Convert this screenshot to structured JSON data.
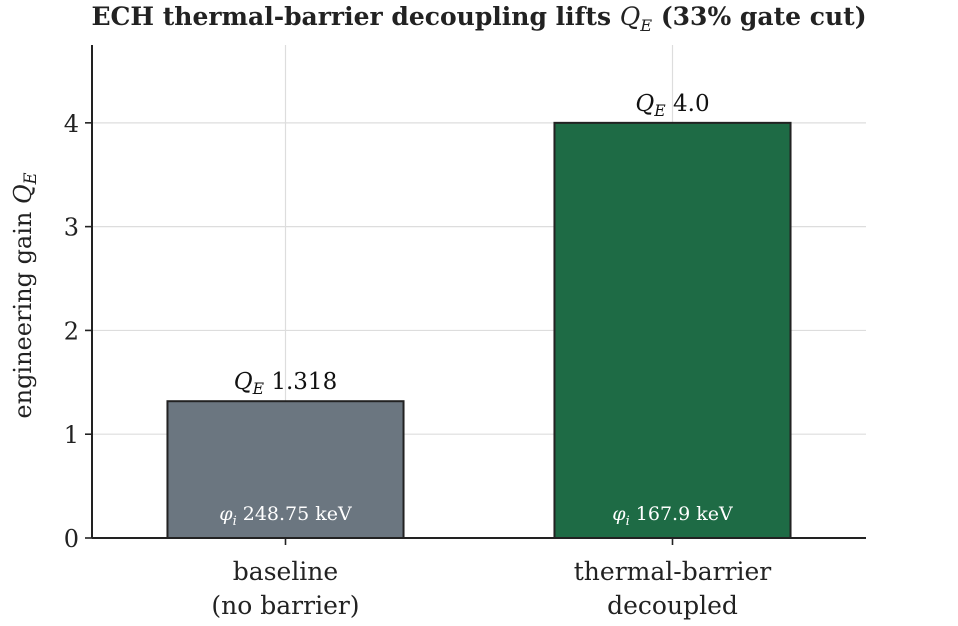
{
  "title": {
    "prefix": "ECH thermal-barrier decoupling lifts ",
    "math": "Q",
    "math_sub": "E",
    "suffix": " (33% gate cut)"
  },
  "chart_data": {
    "type": "bar",
    "categories": [
      [
        "baseline",
        "(no barrier)"
      ],
      [
        "thermal-barrier",
        "decoupled"
      ]
    ],
    "values": [
      1.318,
      4.0
    ],
    "value_labels": [
      "1.318",
      "4.0"
    ],
    "value_label_prefix": {
      "symbol": "Q",
      "sub": "E"
    },
    "inbar_labels": [
      "248.75 keV",
      "167.9 keV"
    ],
    "inbar_label_prefix": {
      "symbol": "φ",
      "sub": "i"
    },
    "bar_colors": [
      "#6b7680",
      "#1e6b45"
    ],
    "edge_color": "#222222",
    "ylabel": {
      "text": "engineering gain ",
      "symbol": "Q",
      "sub": "E"
    },
    "xlabel": "",
    "ylim": [
      0,
      4.75
    ],
    "yticks": [
      0,
      1,
      2,
      3,
      4
    ],
    "grid": true
  }
}
